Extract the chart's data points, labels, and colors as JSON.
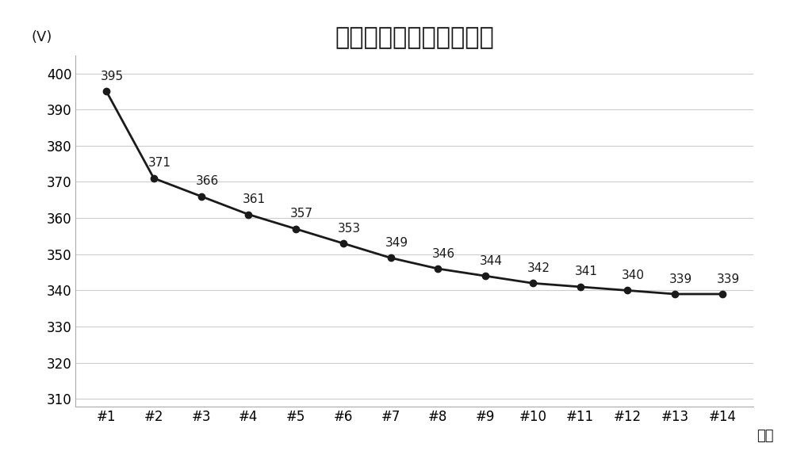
{
  "title": "线路原始潮流节点电压图",
  "ylabel": "(V)",
  "xlabel": "节点",
  "categories": [
    "#1",
    "#2",
    "#3",
    "#4",
    "#5",
    "#6",
    "#7",
    "#8",
    "#9",
    "#10",
    "#11",
    "#12",
    "#13",
    "#14"
  ],
  "values": [
    395,
    371,
    366,
    361,
    357,
    353,
    349,
    346,
    344,
    342,
    341,
    340,
    339,
    339
  ],
  "ylim": [
    308,
    405
  ],
  "yticks": [
    310,
    320,
    330,
    340,
    350,
    360,
    370,
    380,
    390,
    400
  ],
  "line_color": "#1a1a1a",
  "marker_color": "#1a1a1a",
  "marker_style": "o",
  "marker_size": 6,
  "line_width": 2.0,
  "grid_color": "#cccccc",
  "background_color": "#ffffff",
  "title_fontsize": 22,
  "label_fontsize": 13,
  "tick_fontsize": 12,
  "annotation_fontsize": 11
}
